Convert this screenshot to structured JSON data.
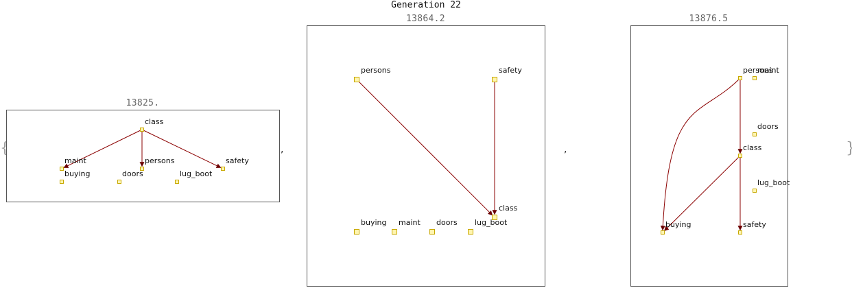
{
  "title": "Generation 22",
  "colors": {
    "edge": "#8b0000",
    "node_fill": "#fff5b0",
    "node_stroke": "#c8a800",
    "frame": "#555555",
    "brace": "#999999"
  },
  "delimiters": {
    "open": "{",
    "close": "}",
    "separator": ","
  },
  "panels": [
    {
      "score": "13825.",
      "nodes": [
        {
          "id": "class",
          "label": "class"
        },
        {
          "id": "maint",
          "label": "maint"
        },
        {
          "id": "persons",
          "label": "persons"
        },
        {
          "id": "safety",
          "label": "safety"
        },
        {
          "id": "buying",
          "label": "buying"
        },
        {
          "id": "doors",
          "label": "doors"
        },
        {
          "id": "lug_boot",
          "label": "lug_boot"
        }
      ],
      "edges": [
        {
          "from": "class",
          "to": "maint"
        },
        {
          "from": "class",
          "to": "persons"
        },
        {
          "from": "class",
          "to": "safety"
        }
      ]
    },
    {
      "score": "13864.2",
      "nodes": [
        {
          "id": "persons",
          "label": "persons"
        },
        {
          "id": "safety",
          "label": "safety"
        },
        {
          "id": "class",
          "label": "class"
        },
        {
          "id": "buying",
          "label": "buying"
        },
        {
          "id": "maint",
          "label": "maint"
        },
        {
          "id": "doors",
          "label": "doors"
        },
        {
          "id": "lug_boot",
          "label": "lug_boot"
        }
      ],
      "edges": [
        {
          "from": "persons",
          "to": "class"
        },
        {
          "from": "safety",
          "to": "class"
        }
      ]
    },
    {
      "score": "13876.5",
      "nodes": [
        {
          "id": "persons",
          "label": "persons"
        },
        {
          "id": "maint",
          "label": "maint"
        },
        {
          "id": "doors",
          "label": "doors"
        },
        {
          "id": "class",
          "label": "class"
        },
        {
          "id": "lug_boot",
          "label": "lug_boot"
        },
        {
          "id": "buying",
          "label": "buying"
        },
        {
          "id": "safety",
          "label": "safety"
        }
      ],
      "edges": [
        {
          "from": "persons",
          "to": "class"
        },
        {
          "from": "persons",
          "to": "buying",
          "curved": true
        },
        {
          "from": "class",
          "to": "buying"
        },
        {
          "from": "class",
          "to": "safety"
        }
      ]
    }
  ]
}
